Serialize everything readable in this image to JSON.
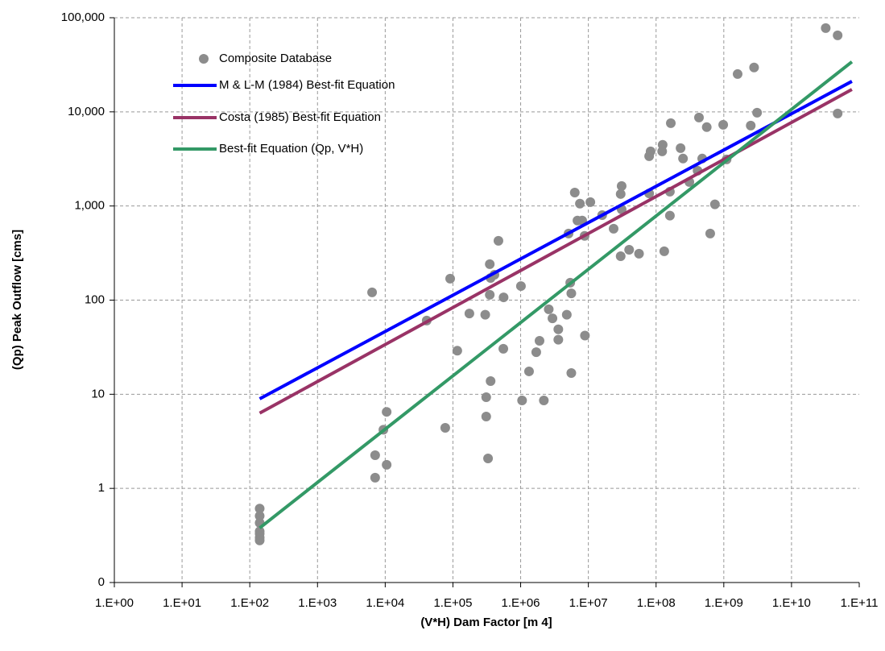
{
  "chart_data": {
    "type": "scatter",
    "xlabel": "(V*H) Dam Factor [m 4]",
    "ylabel": "(Qp) Peak Outflow [cms]",
    "xscale": "log",
    "yscale": "log",
    "grid": true,
    "legend": "upper left",
    "xlim": [
      1,
      100000000000
    ],
    "ylim": [
      0.1,
      100000
    ],
    "xticks": [
      {
        "value": 1,
        "label": "1.E+00"
      },
      {
        "value": 10,
        "label": "1.E+01"
      },
      {
        "value": 100,
        "label": "1.E+02"
      },
      {
        "value": 1000,
        "label": "1.E+03"
      },
      {
        "value": 10000,
        "label": "1.E+04"
      },
      {
        "value": 100000,
        "label": "1.E+05"
      },
      {
        "value": 1000000,
        "label": "1.E+06"
      },
      {
        "value": 10000000,
        "label": "1.E+07"
      },
      {
        "value": 100000000,
        "label": "1.E+08"
      },
      {
        "value": 1000000000,
        "label": "1.E+09"
      },
      {
        "value": 10000000000,
        "label": "1.E+10"
      },
      {
        "value": 100000000000,
        "label": "1.E+11"
      }
    ],
    "yticks": [
      {
        "value": 0.1,
        "label": "0"
      },
      1,
      10,
      100,
      {
        "value": 1000,
        "label": "1,000"
      },
      {
        "value": 10000,
        "label": "10,000"
      },
      {
        "value": 100000,
        "label": "100,000"
      }
    ],
    "series": [
      {
        "name": "Composite Database",
        "mode": "markers",
        "color": "#8c8c8c",
        "x": [
          140,
          140,
          140,
          140,
          140,
          140,
          140,
          6400,
          7100,
          7100,
          9400,
          10500,
          10500,
          41000,
          77000,
          91000,
          116000,
          175000,
          300000,
          310000,
          310000,
          330000,
          350000,
          350000,
          360000,
          360000,
          410000,
          470000,
          555000,
          560000,
          1010000,
          1050000,
          1330000,
          1700000,
          1900000,
          2200000,
          2600000,
          2950000,
          3600000,
          3600000,
          4800000,
          5100000,
          5400000,
          5600000,
          5600000,
          6300000,
          6900000,
          7500000,
          8100000,
          8800000,
          8900000,
          10700000,
          16000000,
          23600000,
          30000000,
          30000000,
          31000000,
          31000000,
          40000000,
          56000000,
          79000000,
          79000000,
          83000000,
          123000000,
          125000000,
          132000000,
          160000000,
          160000000,
          165000000,
          230000000,
          250000000,
          310000000,
          410000000,
          430000000,
          480000000,
          560000000,
          630000000,
          740000000,
          980000000,
          1100000000,
          1600000000,
          2500000000,
          2800000000,
          3100000000,
          32000000000,
          48000000000,
          48000000000
        ],
        "values": [
          0.61,
          0.51,
          0.43,
          0.35,
          0.33,
          0.3,
          0.28,
          121,
          2.25,
          1.3,
          4.2,
          6.5,
          1.78,
          60.6,
          4.4,
          169,
          29,
          72,
          70,
          9.3,
          5.8,
          2.08,
          241,
          114,
          172,
          13.8,
          186,
          427,
          30.4,
          107,
          141,
          8.6,
          17.5,
          28,
          37,
          8.6,
          80,
          64,
          38,
          49,
          70,
          510,
          153,
          118,
          16.8,
          1390,
          700,
          1060,
          700,
          481,
          42,
          1100,
          800,
          574,
          293,
          1340,
          1630,
          920,
          343,
          311,
          1360,
          3380,
          3800,
          3800,
          4460,
          330,
          1420,
          790,
          7590,
          4120,
          3190,
          1800,
          2370,
          8710,
          3190,
          6880,
          510,
          1040,
          7290,
          3120,
          25200,
          7150,
          29600,
          9800,
          77600,
          65000,
          9600
        ]
      },
      {
        "name": "M & L-M (1984) Best-fit Equation",
        "mode": "lines",
        "color": "#0000ff",
        "x": [
          140,
          78000000000
        ],
        "values": [
          8.95,
          21100
        ]
      },
      {
        "name": "Costa (1985) Best-fit Equation",
        "mode": "lines",
        "color": "#993366",
        "x": [
          140,
          78000000000
        ],
        "values": [
          6.3,
          17300
        ]
      },
      {
        "name": "Best-fit Equation (Qp, V*H)",
        "mode": "lines",
        "color": "#339966",
        "x": [
          140,
          78000000000
        ],
        "values": [
          0.38,
          34000
        ]
      }
    ]
  }
}
